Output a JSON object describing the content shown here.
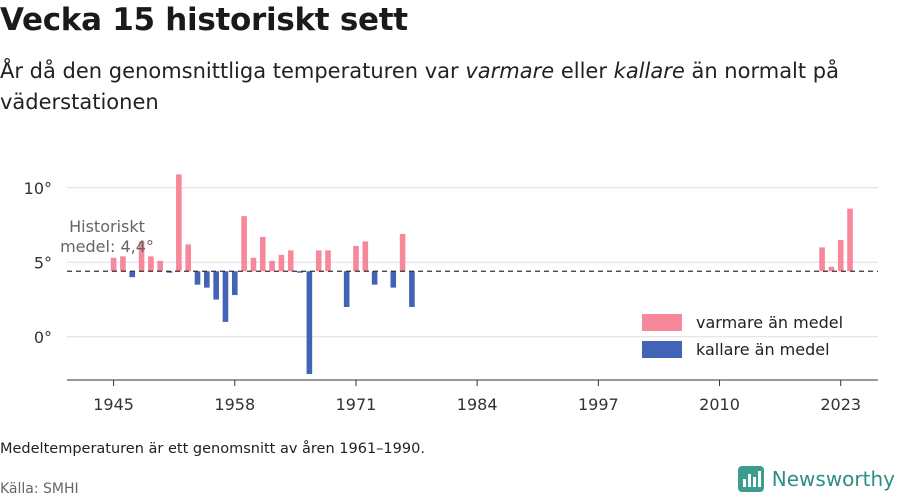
{
  "header": {
    "title": "Vecka 15 historiskt sett",
    "subtitle_1": "År då den genomsnittliga temperaturen var ",
    "subtitle_warm": "varmare",
    "subtitle_2": " eller ",
    "subtitle_cold": "kallare",
    "subtitle_3": " än normalt på väderstationen"
  },
  "footer": {
    "note": "Medeltemperaturen är ett genomsnitt av åren 1961–1990.",
    "source": "Källa: SMHI",
    "brand": "Newsworthy"
  },
  "chart_data": {
    "type": "bar",
    "title": "Vecka 15 historiskt sett",
    "subtitle": "År då den genomsnittliga temperaturen var varmare eller kallare än normalt på väderstationen",
    "baseline": 4.4,
    "baseline_label_line1": "Historiskt",
    "baseline_label_line2": "medel: 4,4°",
    "xlim": [
      1940,
      2027
    ],
    "ylim": [
      -2.9,
      12
    ],
    "x_ticks": [
      1945,
      1958,
      1971,
      1984,
      1997,
      2010,
      2023
    ],
    "y_ticks": [
      {
        "value": 0,
        "label": "0°"
      },
      {
        "value": 5,
        "label": "5°"
      },
      {
        "value": 10,
        "label": "10°"
      }
    ],
    "grid": true,
    "legend_position": "right",
    "legend": [
      {
        "key": "warm",
        "label": "varmare än medel",
        "color": "#f7879a"
      },
      {
        "key": "cold",
        "label": "kallare än medel",
        "color": "#4263b8"
      }
    ],
    "x": [
      1945,
      1946,
      1947,
      1948,
      1949,
      1950,
      1951,
      1952,
      1953,
      1954,
      1955,
      1956,
      1957,
      1958,
      1959,
      1960,
      1961,
      1962,
      1963,
      1964,
      1965,
      1966,
      1967,
      1968,
      1970,
      1971,
      1972,
      1973,
      1975,
      1976,
      1977,
      2021,
      2022,
      2023,
      2024
    ],
    "values": [
      5.3,
      5.4,
      4.0,
      6.4,
      5.4,
      5.1,
      4.3,
      10.9,
      6.2,
      3.5,
      3.3,
      2.5,
      1.0,
      2.8,
      8.1,
      5.3,
      6.7,
      5.1,
      5.5,
      5.8,
      4.3,
      -2.5,
      5.8,
      5.8,
      2.0,
      6.1,
      6.4,
      3.5,
      3.3,
      6.9,
      2.0,
      6.0,
      4.7,
      6.5,
      8.6
    ]
  }
}
